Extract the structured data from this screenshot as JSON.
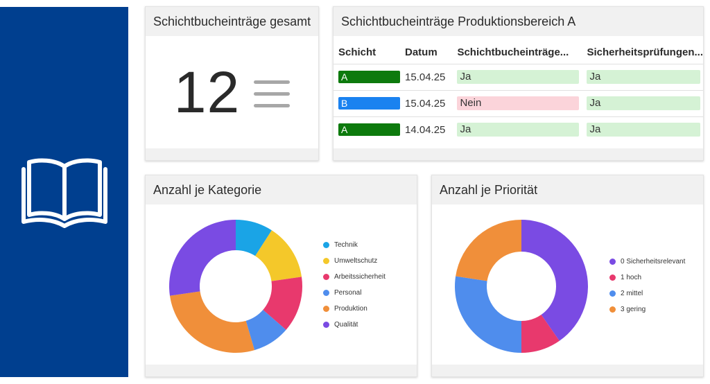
{
  "sidebar": {
    "icon": "open-book-icon"
  },
  "total": {
    "title": "Schichtbucheinträge gesamt",
    "value": "12",
    "menu_icon": "hamburger-icon"
  },
  "table_card": {
    "title": "Schichtbucheinträge Produktionsbereich A",
    "columns": [
      "Schicht",
      "Datum",
      "Schichtbucheinträge...",
      "Sicherheitsprüfungen..."
    ],
    "rows": [
      {
        "shift": "A",
        "shift_color": "#0d7a0d",
        "date": "15.04.25",
        "entries": "Ja",
        "entries_color": "#d5f2d5",
        "checks": "Ja",
        "checks_color": "#d5f2d5"
      },
      {
        "shift": "B",
        "shift_color": "#1a82f0",
        "date": "15.04.25",
        "entries": "Nein",
        "entries_color": "#fbd4da",
        "checks": "Ja",
        "checks_color": "#d5f2d5"
      },
      {
        "shift": "A",
        "shift_color": "#0d7a0d",
        "date": "14.04.25",
        "entries": "Ja",
        "entries_color": "#d5f2d5",
        "checks": "Ja",
        "checks_color": "#d5f2d5"
      }
    ]
  },
  "chart_data": [
    {
      "type": "pie",
      "title": "Anzahl je Kategorie",
      "categories": [
        "Technik",
        "Umweltschutz",
        "Arbeitssicherheit",
        "Personal",
        "Produktion",
        "Qualität"
      ],
      "values": [
        1,
        1.5,
        1.5,
        1,
        3,
        3
      ],
      "colors": [
        "#1aa4e6",
        "#f4c82a",
        "#e8396d",
        "#4f8ded",
        "#f08f3a",
        "#7a4be3"
      ],
      "legend_position": "right"
    },
    {
      "type": "pie",
      "title": "Anzahl je Priorität",
      "categories": [
        "0 Sicherheitsrelevant",
        "1 hoch",
        "2 mittel",
        "3 gering"
      ],
      "values": [
        5,
        1.2,
        3.4,
        2.8
      ],
      "colors": [
        "#7a4be3",
        "#e8396d",
        "#4f8ded",
        "#f08f3a"
      ],
      "legend_position": "right"
    }
  ]
}
